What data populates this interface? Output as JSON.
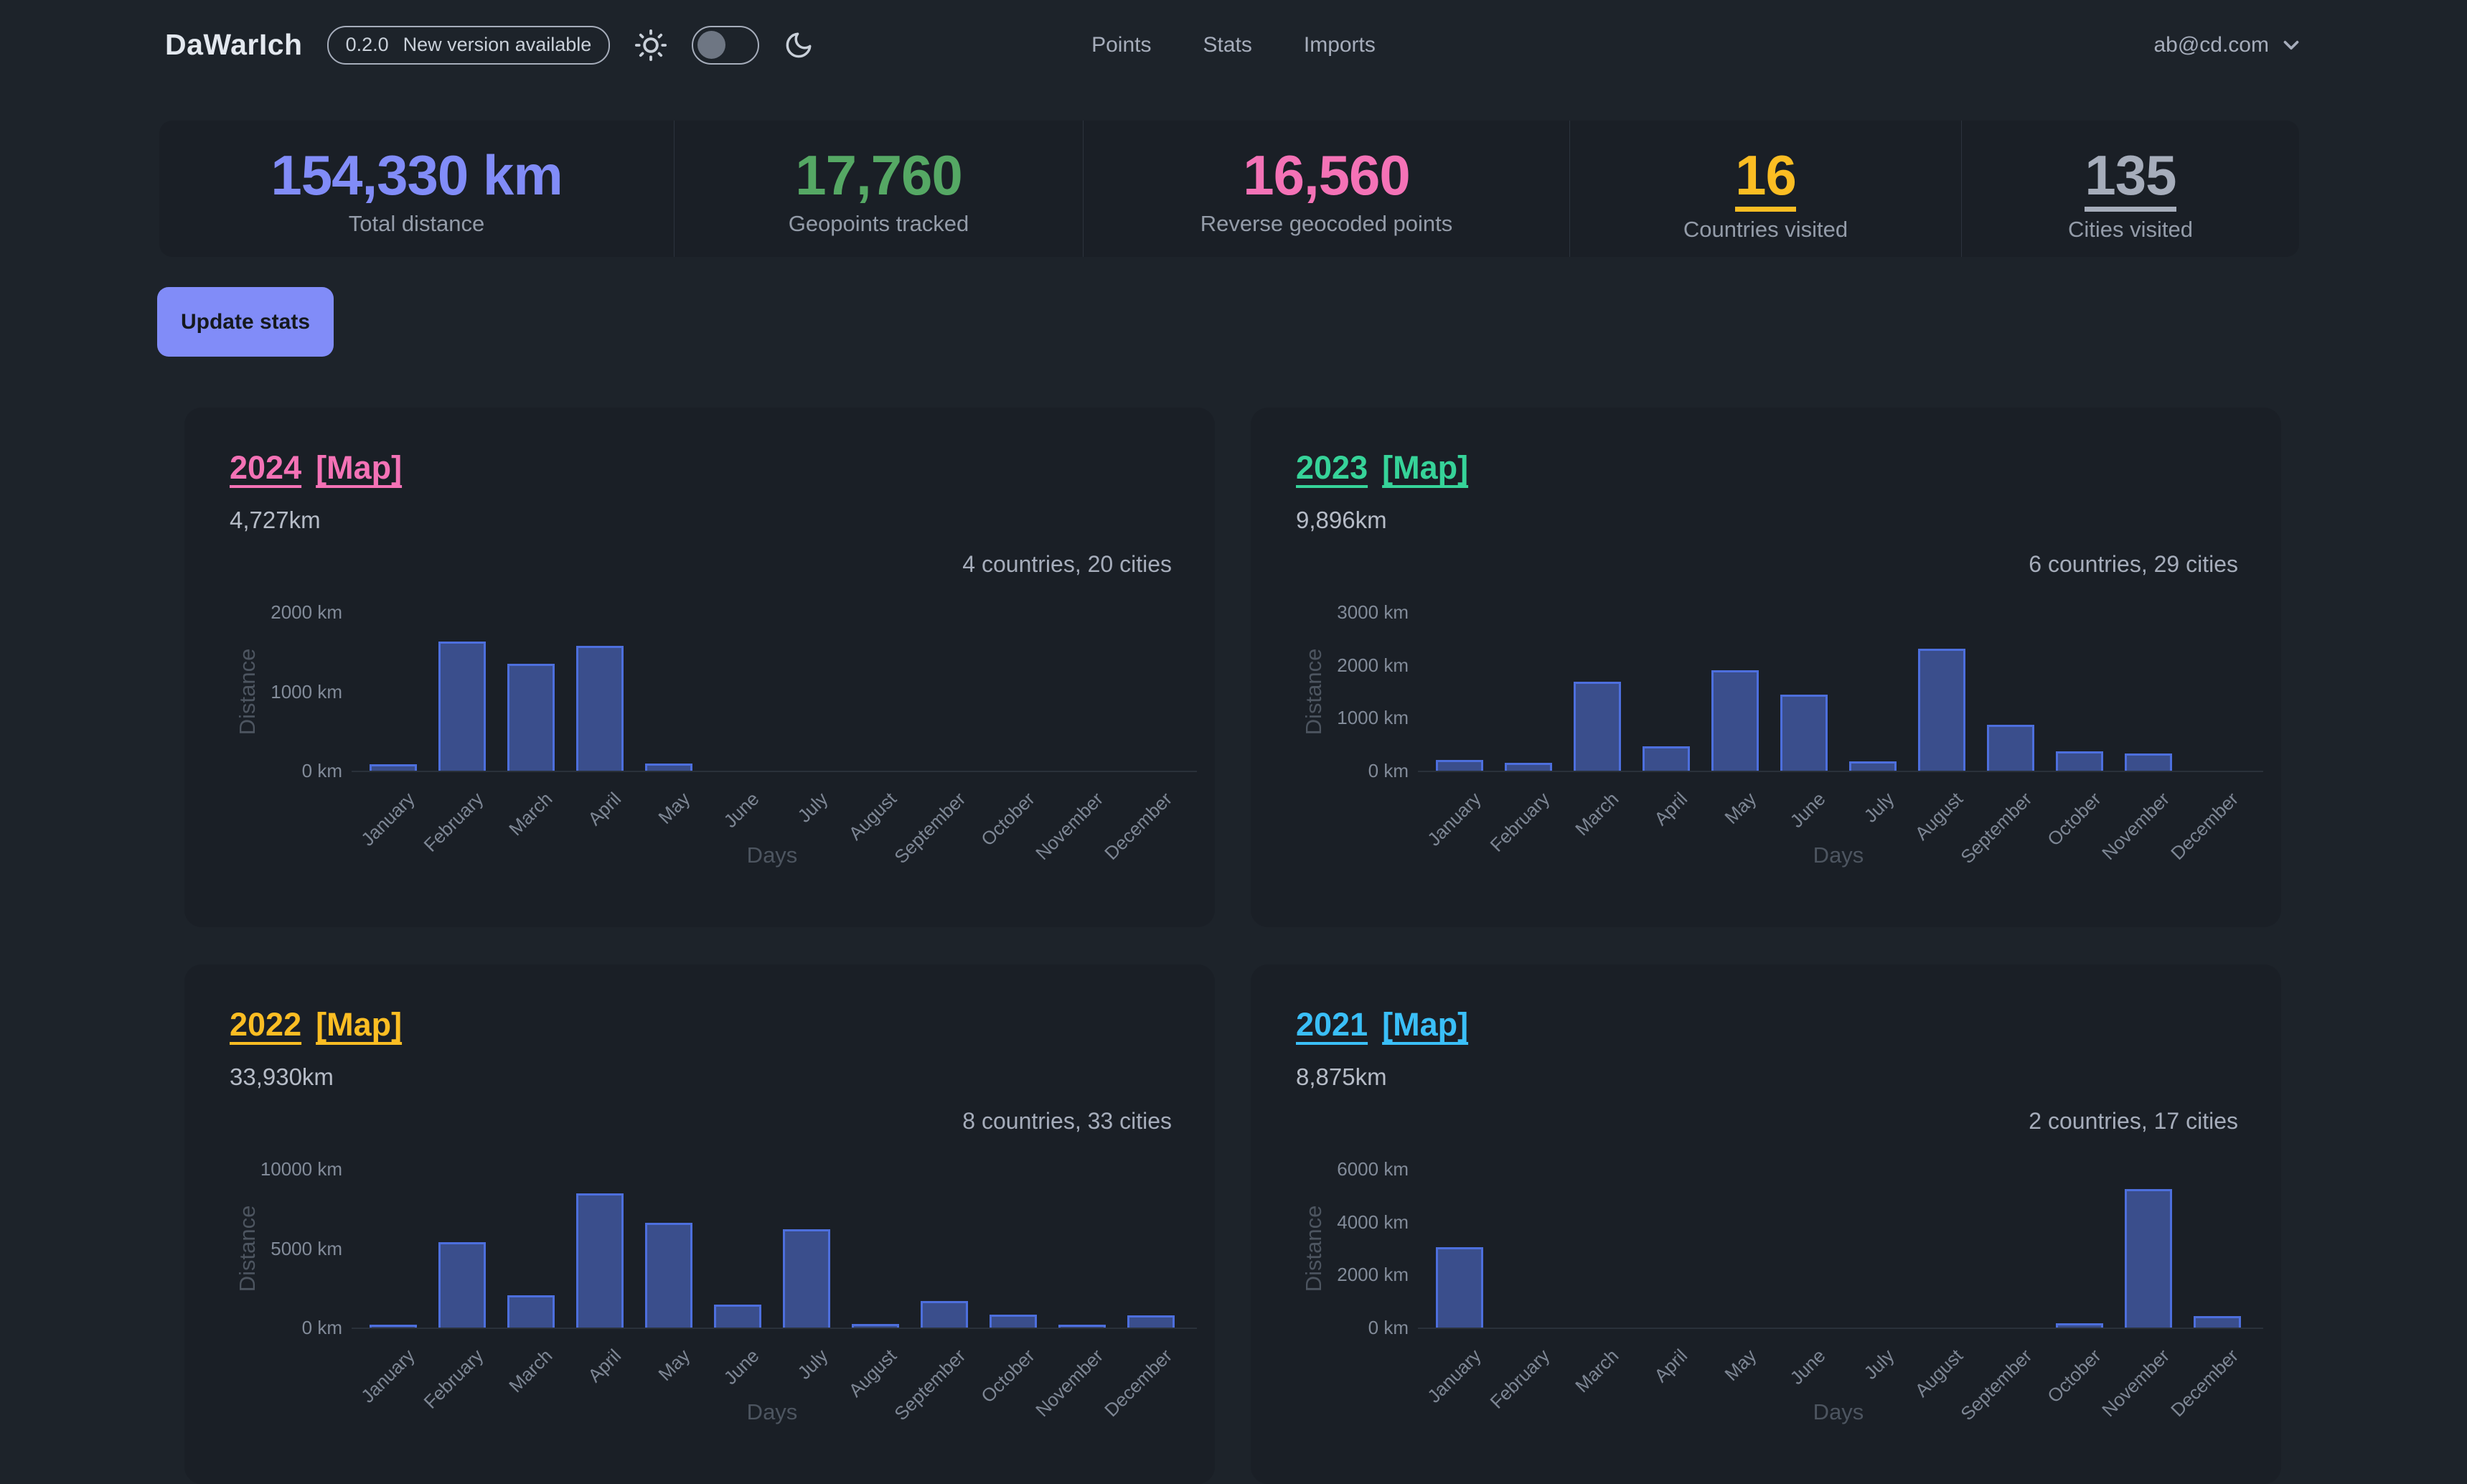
{
  "header": {
    "logo": "DaWarIch",
    "version": "0.2.0",
    "version_message": "New version available",
    "nav": [
      {
        "label": "Points"
      },
      {
        "label": "Stats"
      },
      {
        "label": "Imports"
      }
    ],
    "theme_toggle": {
      "knob_position": "left"
    },
    "user_email": "ab@cd.com"
  },
  "stats": [
    {
      "value": "154,330 km",
      "label": "Total distance",
      "color": "#818cf8",
      "underlined": false
    },
    {
      "value": "17,760",
      "label": "Geopoints tracked",
      "color": "#55a864",
      "underlined": false
    },
    {
      "value": "16,560",
      "label": "Reverse geocoded points",
      "color": "#f472b6",
      "underlined": false
    },
    {
      "value": "16",
      "label": "Countries visited",
      "color": "#fbbd23",
      "underlined": true
    },
    {
      "value": "135",
      "label": "Cities visited",
      "color": "#a6adbb",
      "underlined": true
    }
  ],
  "update_button": "Update stats",
  "colors": {
    "page_bg": "#1d232a",
    "card_bg": "#1a1f26",
    "bar_fill": "#3a4e8c",
    "bar_border": "#4d6fdd"
  },
  "chart_data": [
    {
      "type": "bar",
      "year": "2024",
      "map_label": "[Map]",
      "link_color": "#f472b6",
      "total": "4,727km",
      "summary": "4 countries, 20 cities",
      "xlabel": "Days",
      "ylabel": "Distance",
      "categories": [
        "January",
        "February",
        "March",
        "April",
        "May",
        "June",
        "July",
        "August",
        "September",
        "October",
        "November",
        "December"
      ],
      "values": [
        85,
        1630,
        1350,
        1575,
        87,
        0,
        0,
        0,
        0,
        0,
        0,
        0
      ],
      "ymax": 2000,
      "yticks": [
        "0 km",
        "1000 km",
        "2000 km"
      ]
    },
    {
      "type": "bar",
      "year": "2023",
      "map_label": "[Map]",
      "link_color": "#36d399",
      "total": "9,896km",
      "summary": "6 countries, 29 cities",
      "xlabel": "Days",
      "ylabel": "Distance",
      "categories": [
        "January",
        "February",
        "March",
        "April",
        "May",
        "June",
        "July",
        "August",
        "September",
        "October",
        "November",
        "December"
      ],
      "values": [
        210,
        155,
        1690,
        465,
        1895,
        1440,
        170,
        2311,
        865,
        370,
        325,
        0
      ],
      "ymax": 3000,
      "yticks": [
        "0 km",
        "1000 km",
        "2000 km",
        "3000 km"
      ]
    },
    {
      "type": "bar",
      "year": "2022",
      "map_label": "[Map]",
      "link_color": "#fbbd23",
      "total": "33,930km",
      "summary": "8 countries, 33 cities",
      "xlabel": "Days",
      "ylabel": "Distance",
      "categories": [
        "January",
        "February",
        "March",
        "April",
        "May",
        "June",
        "July",
        "August",
        "September",
        "October",
        "November",
        "December"
      ],
      "values": [
        150,
        5400,
        2050,
        8440,
        6600,
        1430,
        6200,
        210,
        1680,
        810,
        190,
        770
      ],
      "ymax": 10000,
      "yticks": [
        "0 km",
        "5000 km",
        "10000 km"
      ]
    },
    {
      "type": "bar",
      "year": "2021",
      "map_label": "[Map]",
      "link_color": "#3abff8",
      "total": "8,875km",
      "summary": "2 countries, 17 cities",
      "xlabel": "Days",
      "ylabel": "Distance",
      "categories": [
        "January",
        "February",
        "March",
        "April",
        "May",
        "June",
        "July",
        "August",
        "September",
        "October",
        "November",
        "December"
      ],
      "values": [
        3050,
        0,
        0,
        0,
        0,
        0,
        0,
        0,
        0,
        160,
        5230,
        435
      ],
      "ymax": 6000,
      "yticks": [
        "0 km",
        "2000 km",
        "4000 km",
        "6000 km"
      ]
    }
  ]
}
